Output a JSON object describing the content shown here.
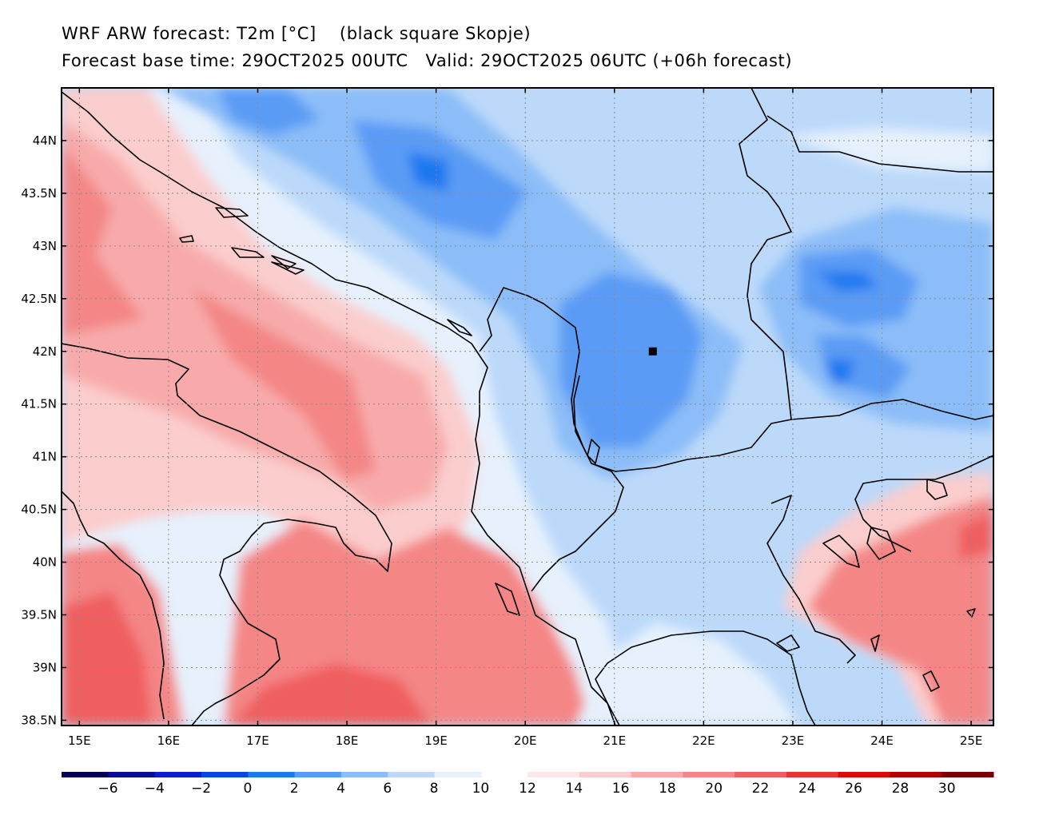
{
  "title": {
    "line1": "WRF ARW forecast: T2m [°C]    (black square Skopje)",
    "line2": "Forecast base time: 29OCT2025 00UTC   Valid: 29OCT2025 06UTC (+06h forecast)"
  },
  "map": {
    "lon_range": [
      14.8,
      25.25
    ],
    "lat_range": [
      38.45,
      44.5
    ],
    "lon_ticks": [
      "15E",
      "16E",
      "17E",
      "18E",
      "19E",
      "20E",
      "21E",
      "22E",
      "23E",
      "24E",
      "25E"
    ],
    "lat_ticks": [
      "38.5N",
      "39N",
      "39.5N",
      "40N",
      "40.5N",
      "41N",
      "41.5N",
      "42N",
      "42.5N",
      "43N",
      "43.5N",
      "44N"
    ],
    "marker": {
      "label": "Skopje",
      "lon": 21.43,
      "lat": 42.0
    }
  },
  "colorbar": {
    "labels": [
      "-6",
      "-4",
      "-2",
      "0",
      "2",
      "4",
      "6",
      "8",
      "10",
      "12",
      "14",
      "16",
      "18",
      "20",
      "22",
      "24",
      "26",
      "28",
      "30"
    ],
    "colors_cold": [
      "#050050",
      "#0a0a96",
      "#0c1ed2",
      "#0a46e6",
      "#1e78f0",
      "#5a9bf5",
      "#8cbdf8",
      "#bcd9fa",
      "#e6f1fd"
    ],
    "colors_warm": [
      "#fde8e8",
      "#fbcdcd",
      "#f8aaaa",
      "#f48686",
      "#f05e5e",
      "#eb3232",
      "#dc0a0a",
      "#b40000",
      "#7a0000"
    ]
  }
}
